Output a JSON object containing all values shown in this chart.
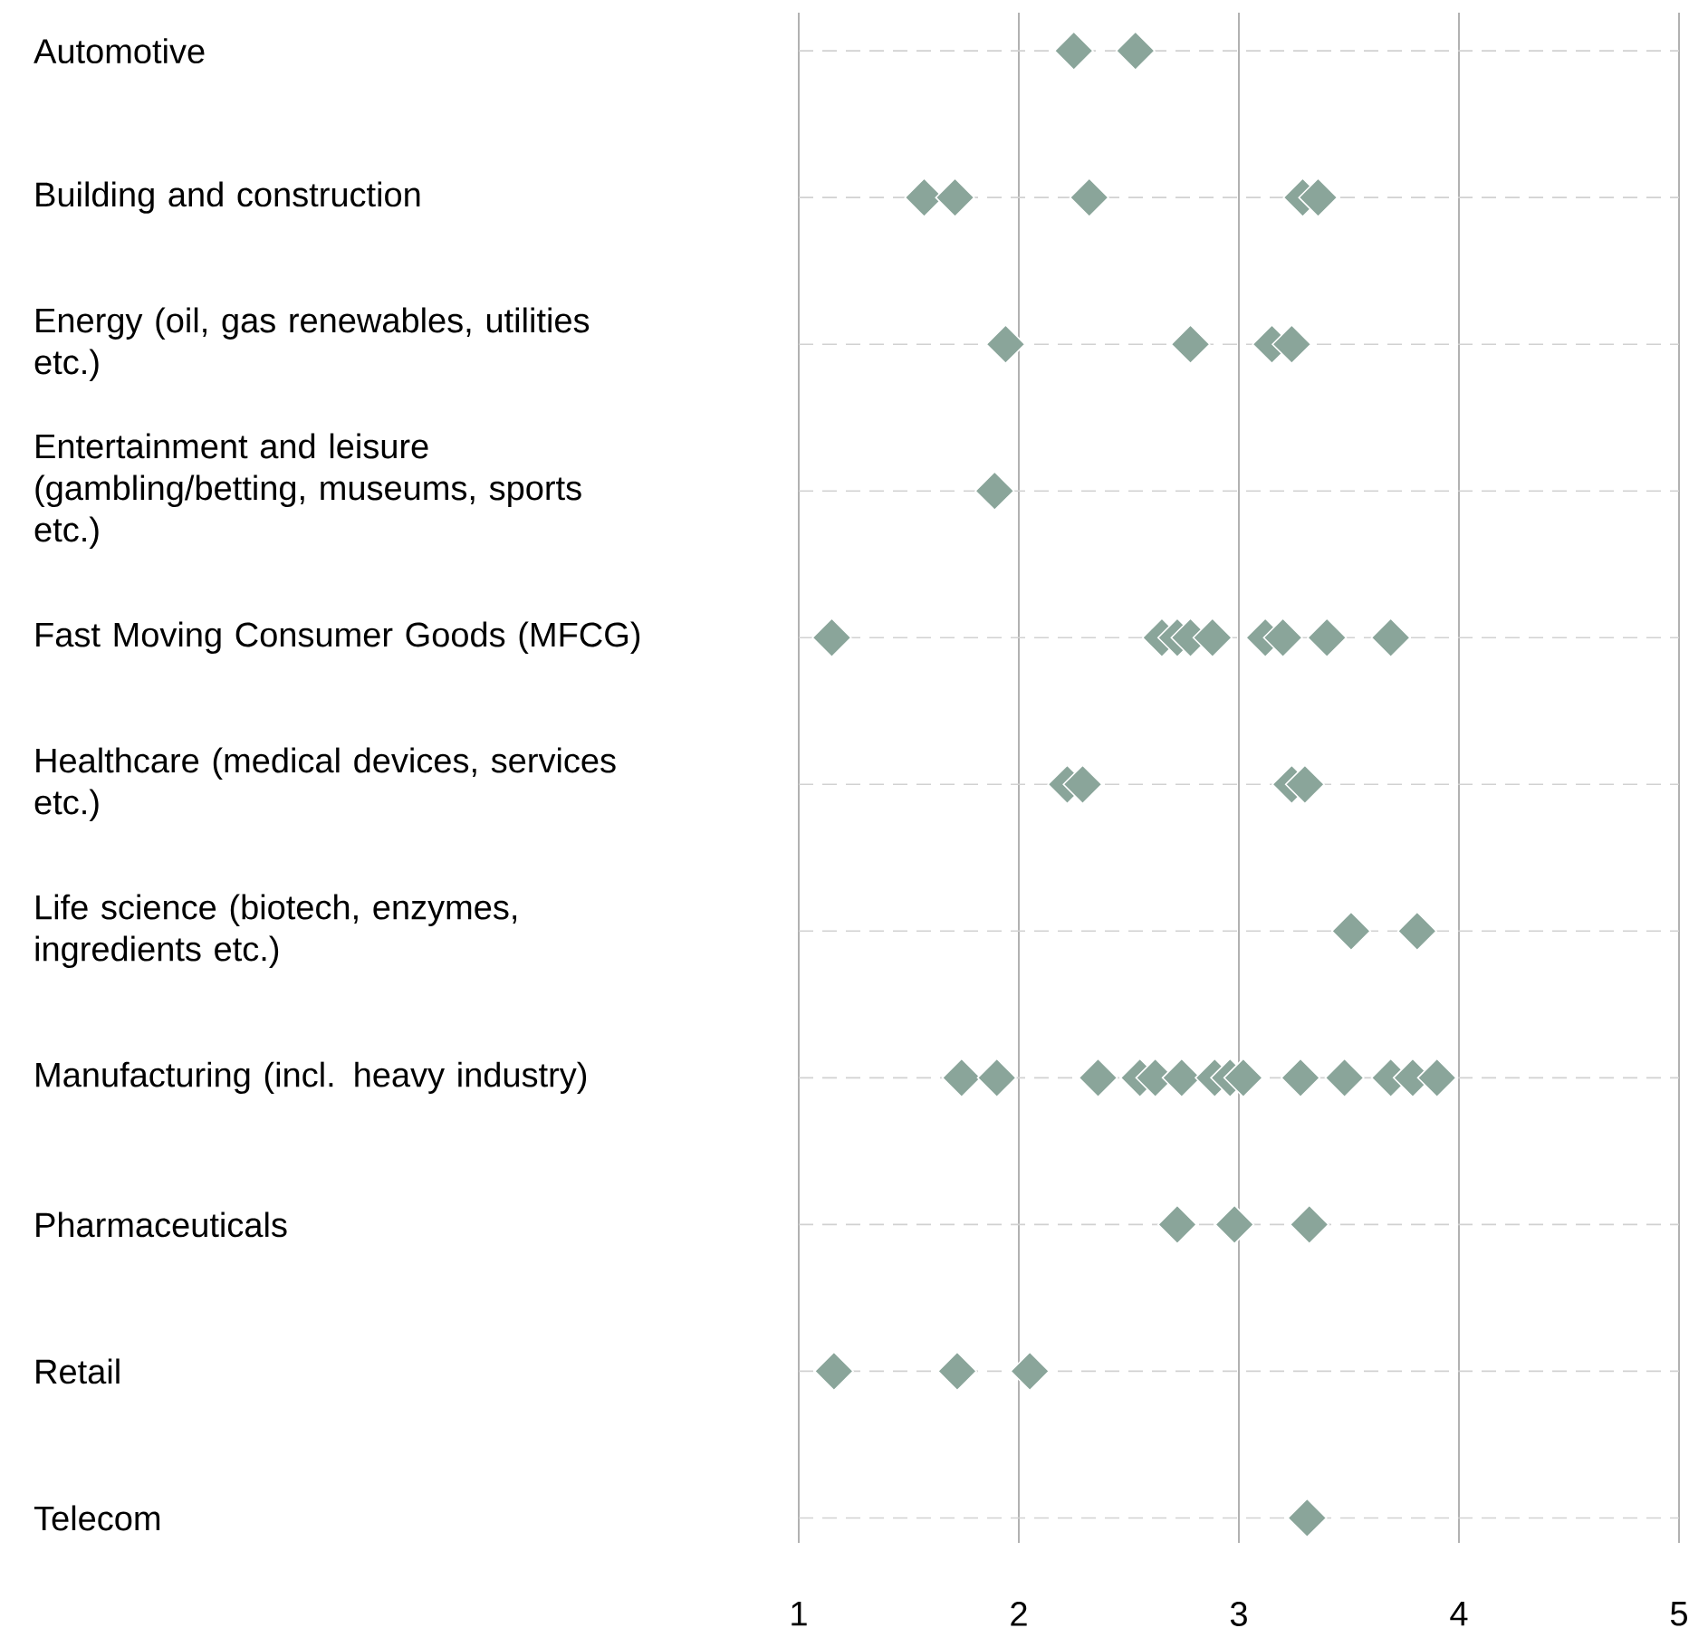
{
  "chart_data": {
    "type": "scatter",
    "orientation": "horizontal",
    "categories": [
      "Automotive",
      "Building and construction",
      "Energy (oil, gas renewables, utilities etc.)",
      "Entertainment and leisure (gambling/betting, museums, sports etc.)",
      "Fast Moving Consumer Goods (MFCG)",
      "Healthcare (medical devices, services etc.)",
      "Life science (biotech, enzymes, ingredients etc.)",
      "Manufacturing (incl. heavy industry)",
      "Pharmaceuticals",
      "Retail",
      "Telecom"
    ],
    "series": [
      {
        "color": "#8aa59a",
        "values": [
          2.25,
          1.57,
          1.94,
          1.89,
          1.15,
          2.22,
          3.51,
          1.74,
          2.72,
          1.16,
          3.31
        ]
      },
      {
        "color": "#8aa59a",
        "values": [
          2.53,
          1.71,
          2.78,
          null,
          2.65,
          2.29,
          3.81,
          1.9,
          2.98,
          1.72,
          null
        ]
      },
      {
        "color": "#8aa59a",
        "values": [
          null,
          2.32,
          3.15,
          null,
          2.72,
          3.24,
          null,
          2.36,
          3.32,
          2.05,
          null
        ]
      },
      {
        "color": "#8aa59a",
        "values": [
          null,
          3.29,
          3.24,
          null,
          2.78,
          3.3,
          null,
          2.55,
          null,
          null,
          null
        ]
      },
      {
        "color": "#8aa59a",
        "values": [
          null,
          3.36,
          null,
          null,
          2.88,
          null,
          null,
          2.62,
          null,
          null,
          null
        ]
      },
      {
        "color": "#8aa59a",
        "values": [
          null,
          null,
          null,
          null,
          3.12,
          null,
          null,
          2.74,
          null,
          null,
          null
        ]
      },
      {
        "color": "#8aa59a",
        "values": [
          null,
          null,
          null,
          null,
          3.2,
          null,
          null,
          2.89,
          null,
          null,
          null
        ]
      },
      {
        "color": "#8aa59a",
        "values": [
          null,
          null,
          null,
          null,
          3.4,
          null,
          null,
          2.96,
          null,
          null,
          null
        ]
      },
      {
        "color": "#8aa59a",
        "values": [
          null,
          null,
          null,
          null,
          3.69,
          null,
          null,
          3.02,
          null,
          null,
          null
        ]
      },
      {
        "color": "#8aa59a",
        "values": [
          null,
          null,
          null,
          null,
          null,
          null,
          null,
          3.28,
          null,
          null,
          null
        ]
      },
      {
        "color": "#8aa59a",
        "values": [
          null,
          null,
          null,
          null,
          null,
          null,
          null,
          3.48,
          null,
          null,
          null
        ]
      },
      {
        "color": "#8aa59a",
        "values": [
          null,
          null,
          null,
          null,
          null,
          null,
          null,
          3.69,
          null,
          null,
          null
        ]
      },
      {
        "color": "#8aa59a",
        "values": [
          null,
          null,
          null,
          null,
          null,
          null,
          null,
          3.79,
          null,
          null,
          null
        ]
      },
      {
        "color": "#8aa59a",
        "values": [
          null,
          null,
          null,
          null,
          null,
          null,
          null,
          3.9,
          null,
          null,
          null
        ]
      }
    ],
    "xlim": [
      1,
      5
    ],
    "xticks": [
      1,
      2,
      3,
      4,
      5
    ],
    "grid": true,
    "marker": "diamond"
  }
}
